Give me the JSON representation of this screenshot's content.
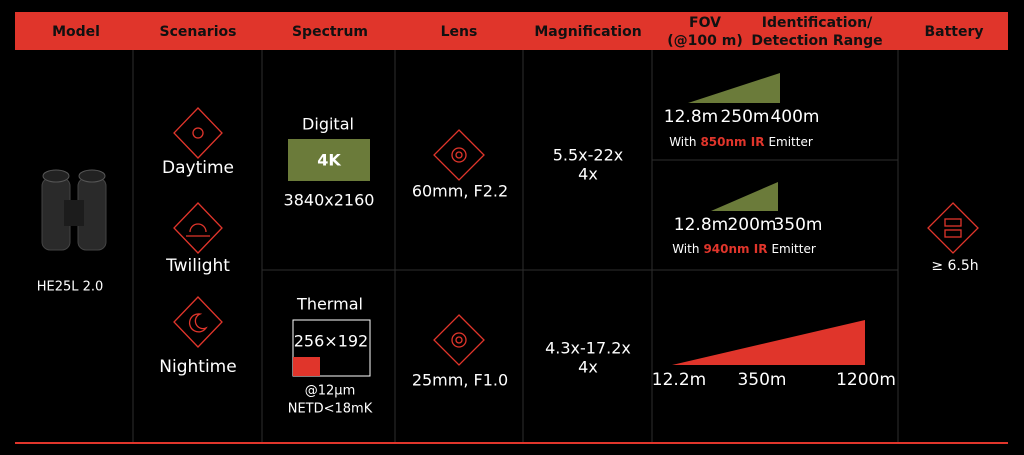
{
  "header": {
    "columns": [
      [
        "Model"
      ],
      [
        "Scenarios"
      ],
      [
        "Spectrum"
      ],
      [
        "Lens"
      ],
      [
        "Magnification"
      ],
      [
        "FOV",
        "(@100 m)"
      ],
      [
        "Identification/",
        "Detection Range"
      ],
      [
        "Battery"
      ]
    ]
  },
  "model": {
    "name": "HE25L 2.0"
  },
  "scenarios": [
    "Daytime",
    "Twilight",
    "Nightime"
  ],
  "rows": [
    {
      "spectrum": {
        "label": "Digital",
        "badge": "4K",
        "resolution": "3840x2160"
      },
      "lens": "60mm, F2.2",
      "magnification": [
        "5.5x-22x",
        "4x"
      ],
      "ranges": [
        {
          "distances": [
            "12.8m",
            "250m",
            "400m"
          ],
          "emitter": [
            "With",
            "850nm IR",
            "Emitter"
          ]
        },
        {
          "distances": [
            "12.8m",
            "200m",
            "350m"
          ],
          "emitter": [
            "With",
            "940nm IR",
            "Emitter"
          ]
        }
      ]
    },
    {
      "spectrum": {
        "label": "Thermal",
        "badge": "256×192",
        "details": [
          "@12μm",
          "NETD<18mK"
        ]
      },
      "lens": "25mm, F1.0",
      "magnification": [
        "4.3x-17.2x",
        "4x"
      ],
      "ranges": [
        {
          "distances": [
            "12.2m",
            "350m",
            "1200m"
          ]
        }
      ]
    }
  ],
  "battery": "≥ 6.5h"
}
